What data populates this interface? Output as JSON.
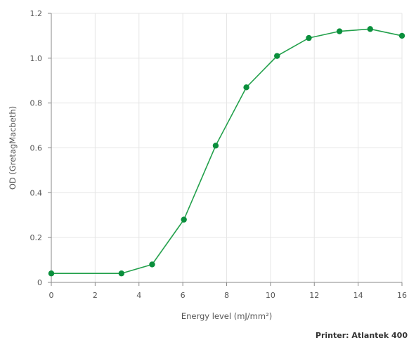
{
  "chart_data": {
    "type": "line",
    "title": "",
    "xlabel": "Energy level (mJ/mm²)",
    "ylabel": "OD (GretagMacbeth)",
    "xlim": [
      0,
      16
    ],
    "ylim": [
      0,
      1.2
    ],
    "xticks": [
      0,
      2,
      4,
      6,
      8,
      10,
      12,
      14,
      16
    ],
    "yticks": [
      0,
      0.2,
      0.4,
      0.6,
      0.8,
      1.0,
      1.2
    ],
    "xtick_labels": [
      "0",
      "2",
      "4",
      "6",
      "8",
      "10",
      "12",
      "14",
      "16"
    ],
    "ytick_labels": [
      "0",
      "0.2",
      "0.4",
      "0.6",
      "0.8",
      "1.0",
      "1.2"
    ],
    "grid": true,
    "legend": "none",
    "series": [
      {
        "color": "#22a04b",
        "point_color": "#0a8f3c",
        "x": [
          0,
          3.2,
          4.6,
          6.05,
          7.5,
          8.9,
          10.3,
          11.75,
          13.15,
          14.55,
          16
        ],
        "y": [
          0.04,
          0.04,
          0.08,
          0.28,
          0.61,
          0.87,
          1.01,
          1.09,
          1.12,
          1.13,
          1.1
        ]
      }
    ],
    "footnote": "Printer: Atlantek 400"
  }
}
